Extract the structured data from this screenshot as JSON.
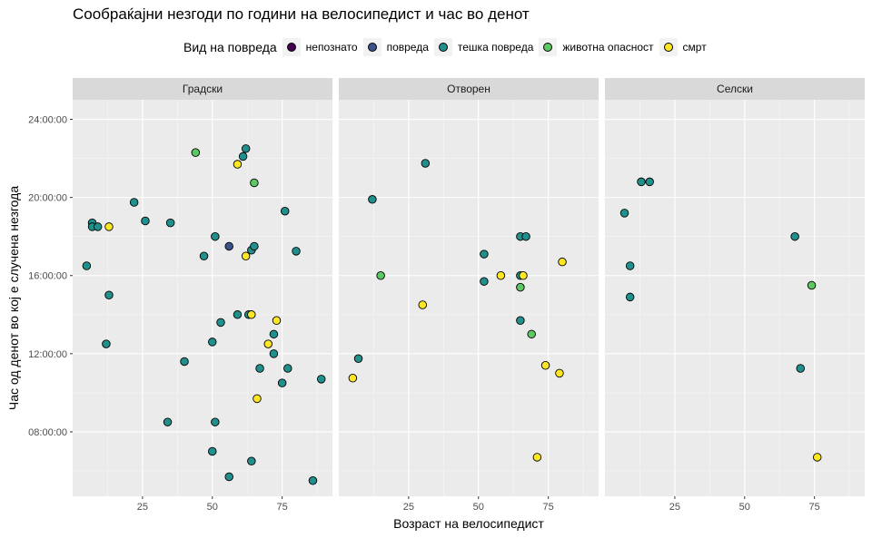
{
  "chart_data": {
    "type": "scatter",
    "title": "Сообраќајни незгоди по години на велосипедист и час во денот",
    "xlabel": "Возраст на велосипедист",
    "ylabel": "Час од денот во кој е случена незгода",
    "xlim": [
      0,
      93
    ],
    "ylim": [
      4.7,
      25.0
    ],
    "x_ticks": [
      25,
      50,
      75
    ],
    "y_ticks": [
      8,
      12,
      16,
      20,
      24
    ],
    "y_tick_labels": [
      "08:00:00",
      "12:00:00",
      "16:00:00",
      "20:00:00",
      "24:00:00"
    ],
    "grid": true,
    "legend": {
      "title": "Вид на повреда",
      "position": "top",
      "items": [
        {
          "label": "непознато",
          "color": "#440154"
        },
        {
          "label": "повреда",
          "color": "#3B528B"
        },
        {
          "label": "тешка повреда",
          "color": "#21908C"
        },
        {
          "label": "животна опасност",
          "color": "#5DC863"
        },
        {
          "label": "смрт",
          "color": "#FDE725"
        }
      ]
    },
    "facets": [
      {
        "name": "Градски",
        "points": [
          {
            "x": 5,
            "y": 16.5,
            "s": 2
          },
          {
            "x": 7,
            "y": 18.7,
            "s": 2
          },
          {
            "x": 7,
            "y": 18.5,
            "s": 2
          },
          {
            "x": 9,
            "y": 18.5,
            "s": 2
          },
          {
            "x": 12,
            "y": 12.5,
            "s": 2
          },
          {
            "x": 13,
            "y": 15.0,
            "s": 2
          },
          {
            "x": 13,
            "y": 18.5,
            "s": 4
          },
          {
            "x": 22,
            "y": 19.75,
            "s": 2
          },
          {
            "x": 26,
            "y": 18.8,
            "s": 2
          },
          {
            "x": 34,
            "y": 8.5,
            "s": 2
          },
          {
            "x": 35,
            "y": 18.7,
            "s": 2
          },
          {
            "x": 40,
            "y": 11.6,
            "s": 2
          },
          {
            "x": 44,
            "y": 22.3,
            "s": 3
          },
          {
            "x": 47,
            "y": 17.0,
            "s": 2
          },
          {
            "x": 50,
            "y": 12.6,
            "s": 2
          },
          {
            "x": 50,
            "y": 7.0,
            "s": 2
          },
          {
            "x": 51,
            "y": 18.0,
            "s": 2
          },
          {
            "x": 51,
            "y": 8.5,
            "s": 2
          },
          {
            "x": 53,
            "y": 13.6,
            "s": 2
          },
          {
            "x": 56,
            "y": 17.5,
            "s": 1
          },
          {
            "x": 56,
            "y": 5.7,
            "s": 2
          },
          {
            "x": 59,
            "y": 21.7,
            "s": 4
          },
          {
            "x": 59,
            "y": 14.0,
            "s": 2
          },
          {
            "x": 61,
            "y": 22.1,
            "s": 2
          },
          {
            "x": 62,
            "y": 22.5,
            "s": 2
          },
          {
            "x": 62,
            "y": 17.0,
            "s": 4
          },
          {
            "x": 63,
            "y": 14.0,
            "s": 2
          },
          {
            "x": 64,
            "y": 14.0,
            "s": 4
          },
          {
            "x": 64,
            "y": 17.3,
            "s": 2
          },
          {
            "x": 64,
            "y": 6.5,
            "s": 2
          },
          {
            "x": 65,
            "y": 20.75,
            "s": 3
          },
          {
            "x": 65,
            "y": 17.5,
            "s": 2
          },
          {
            "x": 66,
            "y": 9.7,
            "s": 4
          },
          {
            "x": 67,
            "y": 11.25,
            "s": 2
          },
          {
            "x": 70,
            "y": 12.5,
            "s": 4
          },
          {
            "x": 72,
            "y": 13.0,
            "s": 2
          },
          {
            "x": 72,
            "y": 12.0,
            "s": 2
          },
          {
            "x": 73,
            "y": 13.7,
            "s": 4
          },
          {
            "x": 75,
            "y": 10.5,
            "s": 2
          },
          {
            "x": 76,
            "y": 19.3,
            "s": 2
          },
          {
            "x": 77,
            "y": 11.25,
            "s": 2
          },
          {
            "x": 80,
            "y": 17.25,
            "s": 2
          },
          {
            "x": 86,
            "y": 5.5,
            "s": 2
          },
          {
            "x": 89,
            "y": 10.7,
            "s": 2
          }
        ]
      },
      {
        "name": "Отворен",
        "points": [
          {
            "x": 5,
            "y": 10.75,
            "s": 4
          },
          {
            "x": 7,
            "y": 11.75,
            "s": 2
          },
          {
            "x": 12,
            "y": 19.9,
            "s": 2
          },
          {
            "x": 15,
            "y": 16.0,
            "s": 3
          },
          {
            "x": 30,
            "y": 14.5,
            "s": 4
          },
          {
            "x": 31,
            "y": 21.75,
            "s": 2
          },
          {
            "x": 52,
            "y": 17.1,
            "s": 2
          },
          {
            "x": 52,
            "y": 15.7,
            "s": 2
          },
          {
            "x": 58,
            "y": 16.0,
            "s": 4
          },
          {
            "x": 65,
            "y": 18.0,
            "s": 2
          },
          {
            "x": 65,
            "y": 16.0,
            "s": 2
          },
          {
            "x": 65,
            "y": 15.4,
            "s": 3
          },
          {
            "x": 65,
            "y": 13.7,
            "s": 2
          },
          {
            "x": 66,
            "y": 16.0,
            "s": 4
          },
          {
            "x": 67,
            "y": 18.0,
            "s": 2
          },
          {
            "x": 69,
            "y": 13.0,
            "s": 3
          },
          {
            "x": 71,
            "y": 6.7,
            "s": 4
          },
          {
            "x": 74,
            "y": 11.4,
            "s": 4
          },
          {
            "x": 79,
            "y": 11.0,
            "s": 4
          },
          {
            "x": 80,
            "y": 16.7,
            "s": 4
          }
        ]
      },
      {
        "name": "Селски",
        "points": [
          {
            "x": 7,
            "y": 19.2,
            "s": 2
          },
          {
            "x": 9,
            "y": 16.5,
            "s": 2
          },
          {
            "x": 9,
            "y": 14.9,
            "s": 2
          },
          {
            "x": 13,
            "y": 20.8,
            "s": 2
          },
          {
            "x": 16,
            "y": 20.8,
            "s": 2
          },
          {
            "x": 68,
            "y": 18.0,
            "s": 2
          },
          {
            "x": 70,
            "y": 11.25,
            "s": 2
          },
          {
            "x": 74,
            "y": 15.5,
            "s": 3
          },
          {
            "x": 76,
            "y": 6.7,
            "s": 4
          }
        ]
      }
    ]
  }
}
